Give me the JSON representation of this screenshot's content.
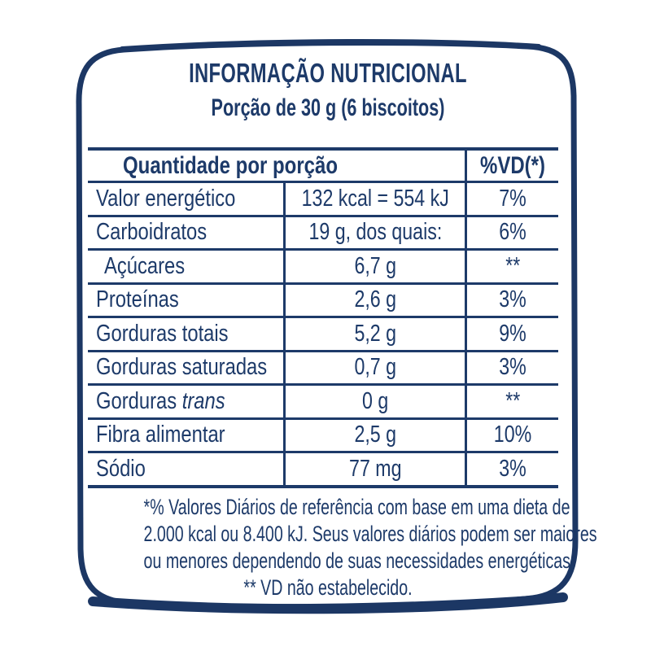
{
  "colors": {
    "navy": "#1d3a69",
    "border": "#1c3764",
    "background": "#ffffff"
  },
  "header": {
    "title": "INFORMAÇÃO NUTRICIONAL",
    "subtitle": "Porção de 30 g (6 biscoitos)"
  },
  "table": {
    "header": {
      "quantity_label": "Quantidade por porção",
      "dv_label": "%VD(*)"
    },
    "rows": [
      {
        "label": "Valor energético",
        "value": "132 kcal = 554 kJ",
        "vd": "7%"
      },
      {
        "label": "Carboidratos",
        "value": "19 g, dos quais:",
        "vd": "6%"
      },
      {
        "label": "Açúcares",
        "value": "6,7 g",
        "vd": "**",
        "indent": true
      },
      {
        "label": "Proteínas",
        "value": "2,6 g",
        "vd": "3%"
      },
      {
        "label": "Gorduras totais",
        "value": "5,2 g",
        "vd": "9%"
      },
      {
        "label": "Gorduras saturadas",
        "value": "0,7 g",
        "vd": "3%"
      },
      {
        "label": "Gorduras",
        "label_italic": "trans",
        "value": "0 g",
        "vd": "**"
      },
      {
        "label": "Fibra alimentar",
        "value": "2,5 g",
        "vd": "10%"
      },
      {
        "label": "Sódio",
        "value": "77 mg",
        "vd": "3%"
      }
    ]
  },
  "footnote": {
    "lines": [
      "*% Valores Diários de referência com base em uma dieta de",
      "2.000 kcal ou 8.400 kJ. Seus valores diários podem ser maiores",
      "ou menores dependendo de suas necessidades energéticas.",
      "** VD não estabelecido."
    ]
  }
}
